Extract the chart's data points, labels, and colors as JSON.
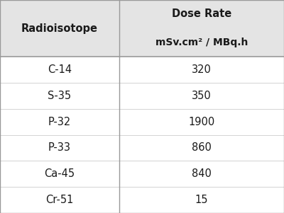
{
  "col1_header": "Radioisotope",
  "col2_header_line1": "Dose Rate",
  "col2_header_line2": "mSv.cm² / MBq.h",
  "rows": [
    [
      "C-14",
      "320"
    ],
    [
      "S-35",
      "350"
    ],
    [
      "P-32",
      "1900"
    ],
    [
      "P-33",
      "860"
    ],
    [
      "Ca-45",
      "840"
    ],
    [
      "Cr-51",
      "15"
    ]
  ],
  "header_bg": "#e4e4e4",
  "body_bg": "#ffffff",
  "divider_color": "#999999",
  "header_font_size": 10.5,
  "body_font_size": 10.5,
  "col_split": 0.42,
  "fig_bg": "#ffffff",
  "text_color": "#1a1a1a"
}
